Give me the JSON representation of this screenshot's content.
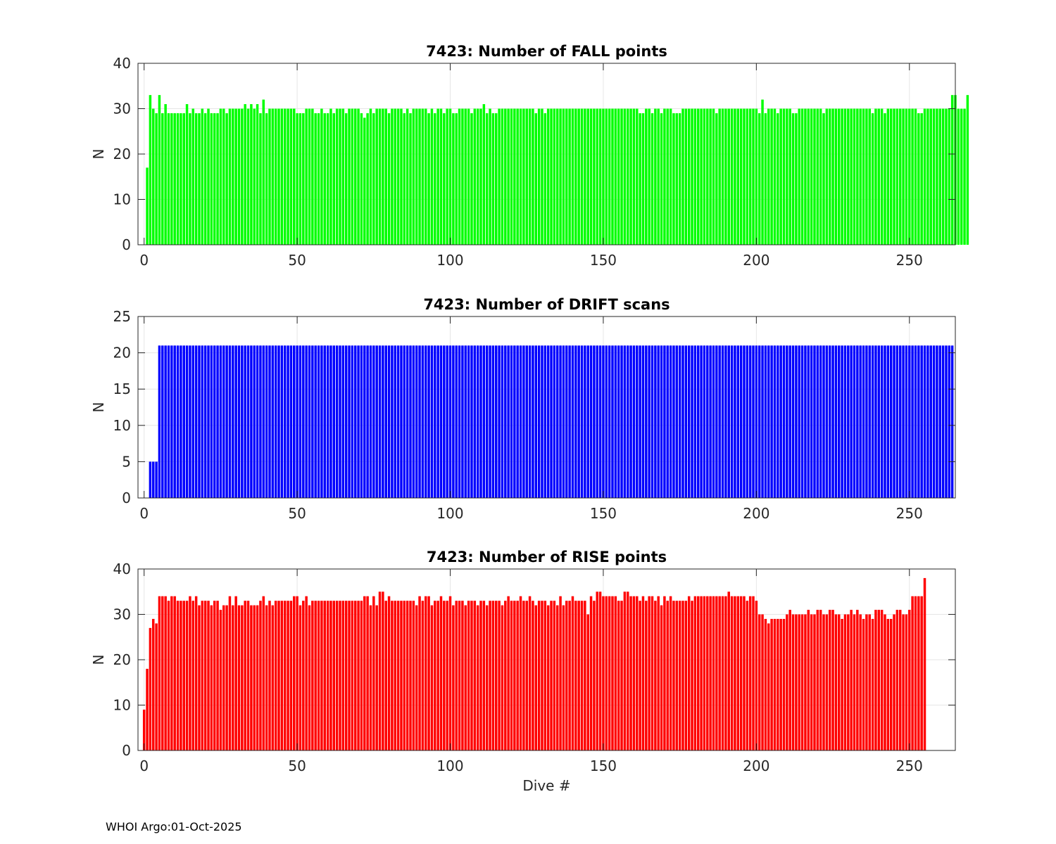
{
  "figure": {
    "footer": "WHOI Argo:01-Oct-2025",
    "xlabel": "Dive #"
  },
  "chart_data": [
    {
      "type": "bar",
      "title": "7423: Number of FALL points",
      "xlabel": "",
      "ylabel": "N",
      "xlim": [
        -2,
        265
      ],
      "ylim": [
        0,
        40
      ],
      "xticks": [
        0,
        50,
        100,
        150,
        200,
        250
      ],
      "yticks": [
        0,
        10,
        20,
        30,
        40
      ],
      "grid": true,
      "color": "#00ff00",
      "x_start": 1,
      "values": [
        17,
        33,
        30,
        29,
        33,
        29,
        31,
        29,
        29,
        29,
        29,
        29,
        29,
        31,
        29,
        30,
        29,
        29,
        30,
        29,
        30,
        29,
        29,
        29,
        30,
        30,
        29,
        30,
        30,
        30,
        30,
        30,
        31,
        30,
        31,
        30,
        31,
        29,
        32,
        29,
        30,
        30,
        30,
        30,
        30,
        30,
        30,
        30,
        30,
        29,
        29,
        29,
        30,
        30,
        30,
        29,
        29,
        30,
        29,
        29,
        30,
        29,
        30,
        30,
        30,
        29,
        30,
        30,
        30,
        30,
        29,
        28,
        29,
        30,
        29,
        30,
        30,
        30,
        30,
        29,
        30,
        30,
        30,
        30,
        29,
        30,
        29,
        30,
        30,
        30,
        30,
        30,
        29,
        30,
        29,
        30,
        30,
        29,
        30,
        30,
        29,
        29,
        30,
        30,
        30,
        30,
        29,
        30,
        30,
        30,
        31,
        29,
        30,
        29,
        29,
        30,
        30,
        30,
        30,
        30,
        30,
        30,
        30,
        30,
        30,
        30,
        30,
        29,
        30,
        30,
        29,
        30,
        30,
        30,
        30,
        30,
        30,
        30,
        30,
        30,
        30,
        30,
        30,
        30,
        30,
        30,
        30,
        30,
        30,
        30,
        30,
        30,
        30,
        30,
        30,
        30,
        30,
        30,
        30,
        30,
        30,
        29,
        29,
        30,
        30,
        29,
        30,
        30,
        29,
        30,
        30,
        30,
        29,
        29,
        29,
        30,
        30,
        30,
        30,
        30,
        30,
        30,
        30,
        30,
        30,
        30,
        29,
        30,
        30,
        30,
        30,
        30,
        30,
        30,
        30,
        30,
        30,
        30,
        30,
        30,
        29,
        32,
        29,
        30,
        30,
        30,
        29,
        30,
        30,
        30,
        30,
        29,
        29,
        30,
        30,
        30,
        30,
        30,
        30,
        30,
        30,
        29,
        30,
        30,
        30,
        30,
        30,
        30,
        30,
        30,
        30,
        30,
        30,
        30,
        30,
        30,
        30,
        29,
        30,
        30,
        30,
        29,
        30,
        30,
        30,
        30,
        30,
        30,
        30,
        30,
        30,
        30,
        29,
        29,
        30,
        30,
        30,
        30,
        30,
        30,
        30,
        30,
        30,
        33,
        33,
        30,
        30,
        30,
        33
      ]
    },
    {
      "type": "bar",
      "title": "7423: Number of DRIFT scans",
      "xlabel": "",
      "ylabel": "N",
      "xlim": [
        -2,
        265
      ],
      "ylim": [
        0,
        25
      ],
      "xticks": [
        0,
        50,
        100,
        150,
        200,
        250
      ],
      "yticks": [
        0,
        5,
        10,
        15,
        20,
        25
      ],
      "grid": true,
      "color": "#0000ff",
      "x_start": 2,
      "values": [
        5,
        5,
        5,
        21,
        21,
        21,
        21,
        21,
        21,
        21,
        21,
        21,
        21,
        21,
        21,
        21,
        21,
        21,
        21,
        21,
        21,
        21,
        21,
        21,
        21,
        21,
        21,
        21,
        21,
        21,
        21,
        21,
        21,
        21,
        21,
        21,
        21,
        21,
        21,
        21,
        21,
        21,
        21,
        21,
        21,
        21,
        21,
        21,
        21,
        21,
        21,
        21,
        21,
        21,
        21,
        21,
        21,
        21,
        21,
        21,
        21,
        21,
        21,
        21,
        21,
        21,
        21,
        21,
        21,
        21,
        21,
        21,
        21,
        21,
        21,
        21,
        21,
        21,
        21,
        21,
        21,
        21,
        21,
        21,
        21,
        21,
        21,
        21,
        21,
        21,
        21,
        21,
        21,
        21,
        21,
        21,
        21,
        21,
        21,
        21,
        21,
        21,
        21,
        21,
        21,
        21,
        21,
        21,
        21,
        21,
        21,
        21,
        21,
        21,
        21,
        21,
        21,
        21,
        21,
        21,
        21,
        21,
        21,
        21,
        21,
        21,
        21,
        21,
        21,
        21,
        21,
        21,
        21,
        21,
        21,
        21,
        21,
        21,
        21,
        21,
        21,
        21,
        21,
        21,
        21,
        21,
        21,
        21,
        21,
        21,
        21,
        21,
        21,
        21,
        21,
        21,
        21,
        21,
        21,
        21,
        21,
        21,
        21,
        21,
        21,
        21,
        21,
        21,
        21,
        21,
        21,
        21,
        21,
        21,
        21,
        21,
        21,
        21,
        21,
        21,
        21,
        21,
        21,
        21,
        21,
        21,
        21,
        21,
        21,
        21,
        21,
        21,
        21,
        21,
        21,
        21,
        21,
        21,
        21,
        21,
        21,
        21,
        21,
        21,
        21,
        21,
        21,
        21,
        21,
        21,
        21,
        21,
        21,
        21,
        21,
        21,
        21,
        21,
        21,
        21,
        21,
        21,
        21,
        21,
        21,
        21,
        21,
        21,
        21,
        21,
        21,
        21,
        21,
        21,
        21,
        21,
        21,
        21,
        21,
        21,
        21,
        21,
        21,
        21,
        21,
        21,
        21,
        21,
        21,
        21,
        21,
        21,
        21,
        21,
        21,
        21,
        21,
        21,
        21,
        21,
        21,
        21,
        21
      ]
    },
    {
      "type": "bar",
      "title": "7423: Number of RISE points",
      "xlabel": "Dive #",
      "ylabel": "N",
      "xlim": [
        -2,
        265
      ],
      "ylim": [
        0,
        40
      ],
      "xticks": [
        0,
        50,
        100,
        150,
        200,
        250
      ],
      "yticks": [
        0,
        10,
        20,
        30,
        40
      ],
      "grid": true,
      "color": "#ff0000",
      "x_start": 0,
      "values": [
        9,
        18,
        27,
        29,
        28,
        34,
        34,
        34,
        33,
        34,
        34,
        33,
        33,
        33,
        33,
        34,
        33,
        34,
        32,
        33,
        33,
        33,
        32,
        33,
        33,
        31,
        32,
        32,
        34,
        32,
        34,
        32,
        32,
        33,
        33,
        32,
        32,
        32,
        33,
        34,
        32,
        33,
        32,
        33,
        33,
        33,
        33,
        33,
        33,
        34,
        34,
        32,
        33,
        34,
        32,
        33,
        33,
        33,
        33,
        33,
        33,
        33,
        33,
        33,
        33,
        33,
        33,
        33,
        33,
        33,
        33,
        33,
        34,
        34,
        32,
        34,
        32,
        35,
        35,
        33,
        34,
        33,
        33,
        33,
        33,
        33,
        33,
        33,
        33,
        32,
        34,
        33,
        34,
        34,
        32,
        33,
        33,
        34,
        33,
        33,
        34,
        32,
        33,
        33,
        33,
        32,
        33,
        33,
        33,
        32,
        33,
        33,
        32,
        33,
        33,
        33,
        33,
        32,
        33,
        34,
        33,
        33,
        33,
        34,
        33,
        33,
        34,
        33,
        32,
        33,
        33,
        33,
        32,
        33,
        33,
        32,
        34,
        32,
        33,
        33,
        34,
        33,
        33,
        33,
        33,
        30,
        34,
        33,
        35,
        35,
        34,
        34,
        34,
        34,
        34,
        33,
        33,
        35,
        35,
        34,
        34,
        34,
        33,
        34,
        33,
        34,
        34,
        33,
        34,
        32,
        34,
        33,
        34,
        33,
        33,
        33,
        33,
        33,
        34,
        33,
        34,
        34,
        34,
        34,
        34,
        34,
        34,
        34,
        34,
        34,
        34,
        35,
        34,
        34,
        34,
        34,
        34,
        33,
        34,
        34,
        33,
        30,
        30,
        29,
        28,
        29,
        29,
        29,
        29,
        29,
        30,
        31,
        30,
        30,
        30,
        30,
        30,
        31,
        30,
        30,
        31,
        31,
        30,
        30,
        31,
        31,
        30,
        30,
        29,
        30,
        30,
        31,
        30,
        31,
        30,
        29,
        30,
        30,
        29,
        31,
        31,
        31,
        30,
        29,
        29,
        30,
        31,
        31,
        30,
        30,
        31,
        34,
        34,
        34,
        34,
        38
      ]
    }
  ]
}
